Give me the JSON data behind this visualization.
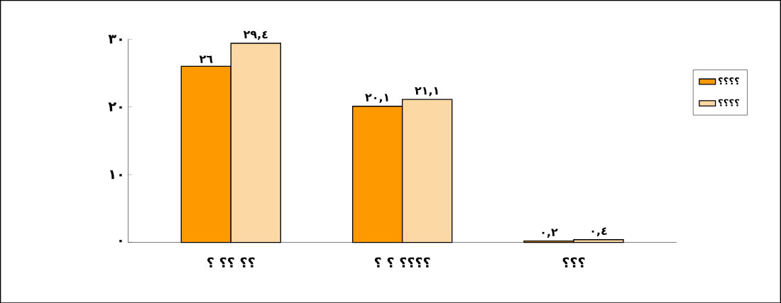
{
  "chart_data": {
    "type": "bar",
    "categories": [
      "؟ ؟؟ ؟؟",
      "؟ ؟ ؟؟؟؟",
      "؟؟؟"
    ],
    "series": [
      {
        "name": "؟؟؟؟",
        "color": "#ff9900",
        "values": [
          26,
          20.1,
          0.2
        ],
        "value_labels": [
          "٢٦",
          "٢٠,١",
          "٠,٢"
        ]
      },
      {
        "name": "؟؟؟؟",
        "color": "#fcd9a4",
        "values": [
          29.4,
          21.1,
          0.4
        ],
        "value_labels": [
          "٢٩,٤",
          "٢١,١",
          "٠,٤"
        ]
      }
    ],
    "ylim": [
      0,
      30
    ],
    "yticks": [
      {
        "value": 0,
        "label": "٠"
      },
      {
        "value": 10,
        "label": "١٠"
      },
      {
        "value": 20,
        "label": "٢٠"
      },
      {
        "value": 30,
        "label": "٣٠"
      }
    ],
    "grid": false,
    "legend": "right"
  }
}
